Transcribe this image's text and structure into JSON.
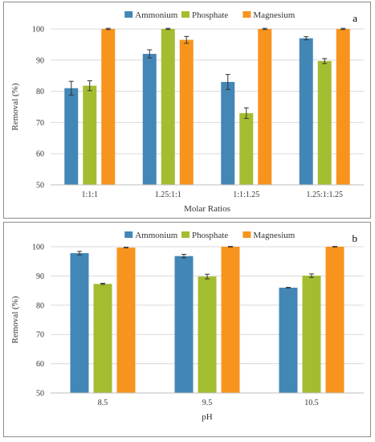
{
  "chart_data": [
    {
      "type": "bar",
      "panel_label": "a",
      "categories": [
        "1:1:1",
        "1.25:1:1",
        "1:1:1.25",
        "1.25:1:1.25"
      ],
      "series": [
        {
          "name": "Ammonium",
          "color": "#4287b6",
          "values": [
            81,
            92,
            83,
            97
          ],
          "errors": [
            2.2,
            1.3,
            2.4,
            0.5
          ]
        },
        {
          "name": "Phosphate",
          "color": "#a3bd31",
          "values": [
            81.8,
            100,
            73,
            89.7
          ],
          "errors": [
            1.6,
            0.2,
            1.7,
            0.8
          ]
        },
        {
          "name": "Magnesium",
          "color": "#f7941d",
          "values": [
            100,
            96.5,
            100,
            100
          ],
          "errors": [
            0.2,
            1.1,
            0.2,
            0.2
          ]
        }
      ],
      "xlabel": "Molar Ratios",
      "ylabel": "Removal (%)",
      "ylim": [
        50,
        100
      ],
      "yticks": [
        50,
        60,
        70,
        80,
        90,
        100
      ],
      "grid": true,
      "legend": "top"
    },
    {
      "type": "bar",
      "panel_label": "b",
      "categories": [
        "8.5",
        "9.5",
        "10.5"
      ],
      "series": [
        {
          "name": "Ammonium",
          "color": "#4287b6",
          "values": [
            97.8,
            96.8,
            86
          ],
          "errors": [
            0.6,
            0.6,
            0.1
          ]
        },
        {
          "name": "Phosphate",
          "color": "#a3bd31",
          "values": [
            87.3,
            89.8,
            90.1
          ],
          "errors": [
            0.2,
            0.8,
            0.6
          ]
        },
        {
          "name": "Magnesium",
          "color": "#f7941d",
          "values": [
            99.7,
            100,
            100
          ],
          "errors": [
            0.1,
            0.1,
            0.1
          ]
        }
      ],
      "xlabel": "pH",
      "ylabel": "Removal (%)",
      "ylim": [
        50,
        100
      ],
      "yticks": [
        50,
        60,
        70,
        80,
        90,
        100
      ],
      "grid": true,
      "legend": "top"
    }
  ]
}
